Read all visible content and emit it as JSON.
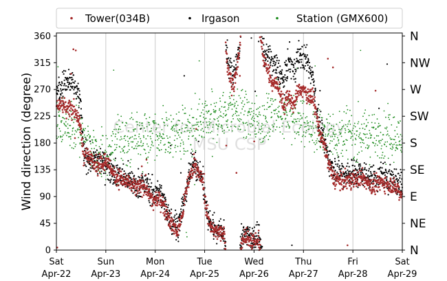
{
  "chart_data": {
    "type": "scatter",
    "title": "",
    "xlabel": "",
    "ylabel": "Wind direction (degree)",
    "ylim": [
      0,
      365
    ],
    "yticks": [
      0,
      45,
      90,
      135,
      180,
      225,
      270,
      315,
      360
    ],
    "compass_labels": [
      "N",
      "NE",
      "E",
      "SE",
      "S",
      "SW",
      "W",
      "NW",
      "N"
    ],
    "x_range_days": [
      0,
      7
    ],
    "x_ticks": [
      {
        "day": "Sat",
        "date": "Apr-22"
      },
      {
        "day": "Sun",
        "date": "Apr-23"
      },
      {
        "day": "Mon",
        "date": "Apr-24"
      },
      {
        "day": "Tue",
        "date": "Apr-25"
      },
      {
        "day": "Wed",
        "date": "Apr-26"
      },
      {
        "day": "Thu",
        "date": "Apr-27"
      },
      {
        "day": "Fri",
        "date": "Apr-28"
      },
      {
        "day": "Sat",
        "date": "Apr-29"
      }
    ],
    "grid": "vertical",
    "legend_position": "top-center",
    "watermark": [
      "Center for Microbial Ecology",
      "MSU CSP"
    ],
    "series": [
      {
        "name": "Tower(034B)",
        "color": "#a52a2a",
        "trend": [
          [
            0.0,
            245
          ],
          [
            0.25,
            240
          ],
          [
            0.4,
            232
          ],
          [
            0.5,
            200
          ],
          [
            0.55,
            160
          ],
          [
            0.7,
            155
          ],
          [
            0.85,
            140
          ],
          [
            1.0,
            150
          ],
          [
            1.2,
            125
          ],
          [
            1.4,
            115
          ],
          [
            1.6,
            105
          ],
          [
            1.8,
            108
          ],
          [
            1.95,
            80
          ],
          [
            2.1,
            88
          ],
          [
            2.2,
            70
          ],
          [
            2.3,
            50
          ],
          [
            2.45,
            30
          ],
          [
            2.55,
            60
          ],
          [
            2.65,
            110
          ],
          [
            2.8,
            150
          ],
          [
            2.85,
            130
          ],
          [
            2.95,
            120
          ],
          [
            3.05,
            60
          ],
          [
            3.15,
            35
          ],
          [
            3.3,
            30
          ],
          [
            3.4,
            30
          ],
          [
            3.45,
            320
          ],
          [
            3.55,
            275
          ],
          [
            3.65,
            300
          ],
          [
            3.7,
            330
          ],
          [
            3.75,
            20
          ],
          [
            3.9,
            20
          ],
          [
            4.1,
            15
          ],
          [
            4.2,
            320
          ],
          [
            4.35,
            285
          ],
          [
            4.5,
            275
          ],
          [
            4.6,
            240
          ],
          [
            4.7,
            260
          ],
          [
            4.8,
            240
          ],
          [
            4.9,
            270
          ],
          [
            5.05,
            265
          ],
          [
            5.2,
            255
          ],
          [
            5.3,
            210
          ],
          [
            5.4,
            180
          ],
          [
            5.5,
            150
          ],
          [
            5.6,
            120
          ],
          [
            5.8,
            115
          ],
          [
            6.0,
            120
          ],
          [
            6.2,
            120
          ],
          [
            6.4,
            108
          ],
          [
            6.6,
            115
          ],
          [
            6.8,
            110
          ],
          [
            7.0,
            95
          ]
        ]
      },
      {
        "name": "Irgason",
        "color": "#000000",
        "trend": [
          [
            0.0,
            270
          ],
          [
            0.25,
            285
          ],
          [
            0.4,
            270
          ],
          [
            0.5,
            240
          ],
          [
            0.55,
            160
          ],
          [
            0.7,
            150
          ],
          [
            0.85,
            150
          ],
          [
            1.0,
            145
          ],
          [
            1.2,
            130
          ],
          [
            1.4,
            120
          ],
          [
            1.6,
            112
          ],
          [
            1.8,
            110
          ],
          [
            1.95,
            95
          ],
          [
            2.1,
            100
          ],
          [
            2.2,
            75
          ],
          [
            2.3,
            55
          ],
          [
            2.45,
            40
          ],
          [
            2.55,
            65
          ],
          [
            2.65,
            115
          ],
          [
            2.8,
            155
          ],
          [
            2.85,
            135
          ],
          [
            2.95,
            125
          ],
          [
            3.05,
            60
          ],
          [
            3.15,
            40
          ],
          [
            3.3,
            35
          ],
          [
            3.4,
            30
          ],
          [
            3.45,
            330
          ],
          [
            3.55,
            290
          ],
          [
            3.65,
            315
          ],
          [
            3.7,
            335
          ],
          [
            3.75,
            25
          ],
          [
            3.9,
            25
          ],
          [
            4.1,
            20
          ],
          [
            4.2,
            335
          ],
          [
            4.35,
            320
          ],
          [
            4.5,
            300
          ],
          [
            4.6,
            280
          ],
          [
            4.7,
            320
          ],
          [
            4.8,
            300
          ],
          [
            4.9,
            330
          ],
          [
            5.05,
            320
          ],
          [
            5.2,
            290
          ],
          [
            5.3,
            215
          ],
          [
            5.4,
            190
          ],
          [
            5.5,
            160
          ],
          [
            5.6,
            140
          ],
          [
            5.8,
            130
          ],
          [
            6.0,
            130
          ],
          [
            6.2,
            130
          ],
          [
            6.4,
            120
          ],
          [
            6.6,
            125
          ],
          [
            6.8,
            120
          ],
          [
            7.0,
            110
          ]
        ]
      },
      {
        "name": "Station (GMX600)",
        "color": "#1a8a1a",
        "trend": [
          [
            0.0,
            215
          ],
          [
            0.4,
            210
          ],
          [
            0.55,
            190
          ],
          [
            0.7,
            175
          ],
          [
            0.85,
            160
          ],
          [
            1.0,
            155
          ],
          [
            1.15,
            175
          ],
          [
            1.3,
            185
          ],
          [
            1.6,
            190
          ],
          [
            2.0,
            190
          ],
          [
            2.4,
            195
          ],
          [
            2.8,
            200
          ],
          [
            3.0,
            210
          ],
          [
            3.3,
            225
          ],
          [
            3.6,
            235
          ],
          [
            3.9,
            225
          ],
          [
            4.2,
            215
          ],
          [
            4.5,
            235
          ],
          [
            4.8,
            225
          ],
          [
            5.1,
            210
          ],
          [
            5.4,
            195
          ],
          [
            5.8,
            195
          ],
          [
            6.2,
            195
          ],
          [
            6.6,
            190
          ],
          [
            7.0,
            185
          ]
        ]
      }
    ]
  }
}
